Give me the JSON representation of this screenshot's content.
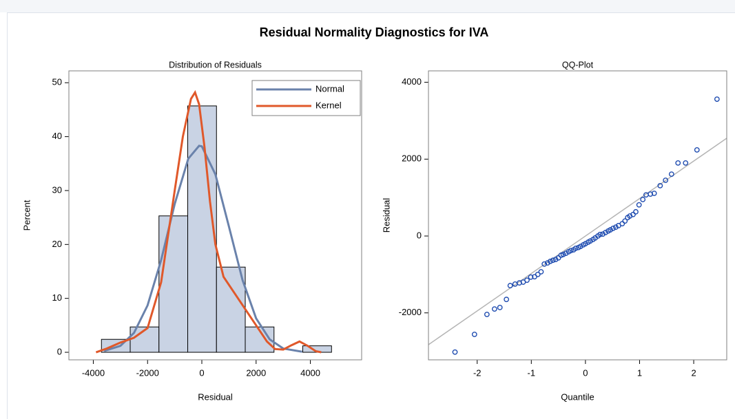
{
  "title": "Residual Normality Diagnostics for IVA",
  "chart_data": [
    {
      "type": "histogram",
      "title": "Distribution of Residuals",
      "xlabel": "Residual",
      "ylabel": "Percent",
      "bins": [
        -3700,
        -2640,
        -1580,
        -520,
        540,
        1600,
        2660,
        3720,
        4780
      ],
      "values": [
        2.4,
        4.7,
        25.3,
        45.7,
        15.8,
        4.7,
        0,
        1.2
      ],
      "color": "#c9d3e4",
      "curves": [
        {
          "name": "Normal",
          "color": "#6a82ab",
          "x": [
            -3600,
            -3000,
            -2500,
            -2000,
            -1500,
            -1000,
            -500,
            -100,
            0,
            500,
            1000,
            1500,
            2000,
            2500,
            3000,
            3700
          ],
          "values": [
            0.25,
            1.2,
            3.6,
            8.7,
            17.1,
            27.5,
            35.9,
            38.3,
            38.2,
            33.0,
            23.3,
            13.4,
            6.3,
            2.4,
            0.7,
            0.1
          ]
        },
        {
          "name": "Kernel",
          "color": "#e0582a",
          "x": [
            -3900,
            -3500,
            -3000,
            -2500,
            -2000,
            -1500,
            -1000,
            -700,
            -400,
            -250,
            -100,
            100,
            300,
            500,
            800,
            1200,
            1600,
            2000,
            2400,
            2700,
            3000,
            3300,
            3600,
            3900,
            4200,
            4400
          ],
          "values": [
            0,
            0.7,
            1.8,
            2.7,
            4.5,
            13,
            30,
            40,
            47,
            48.2,
            46,
            38,
            28,
            20,
            14,
            11,
            8,
            5,
            2,
            0.6,
            0.5,
            1.3,
            2.0,
            1.2,
            0.2,
            0
          ]
        }
      ],
      "legend": "upper right",
      "xlim": [
        -4900,
        5890
      ],
      "ylim": [
        -1.4,
        52.2
      ],
      "xticks": [
        -4000,
        -2000,
        0,
        2000,
        4000
      ],
      "yticks": [
        0,
        10,
        20,
        30,
        40,
        50
      ]
    },
    {
      "type": "scatter",
      "title": "QQ-Plot",
      "xlabel": "Quantile",
      "ylabel": "Residual",
      "x": [
        -2.41,
        -2.05,
        -1.82,
        -1.68,
        -1.58,
        -1.46,
        -1.39,
        -1.3,
        -1.22,
        -1.15,
        -1.08,
        -1.01,
        -0.94,
        -0.88,
        -0.82,
        -0.76,
        -0.7,
        -0.65,
        -0.6,
        -0.55,
        -0.5,
        -0.45,
        -0.41,
        -0.36,
        -0.31,
        -0.27,
        -0.22,
        -0.18,
        -0.13,
        -0.09,
        -0.04,
        0,
        0.05,
        0.09,
        0.14,
        0.18,
        0.23,
        0.27,
        0.32,
        0.37,
        0.42,
        0.46,
        0.51,
        0.56,
        0.61,
        0.68,
        0.73,
        0.78,
        0.82,
        0.88,
        0.93,
        0.99,
        1.06,
        1.12,
        1.2,
        1.27,
        1.38,
        1.48,
        1.59,
        1.71,
        1.85,
        2.06,
        2.43
      ],
      "values": [
        -3020,
        -2560,
        -2040,
        -1900,
        -1860,
        -1650,
        -1290,
        -1250,
        -1220,
        -1200,
        -1150,
        -1070,
        -1060,
        -1000,
        -930,
        -730,
        -700,
        -660,
        -630,
        -610,
        -570,
        -500,
        -480,
        -450,
        -410,
        -380,
        -360,
        -320,
        -300,
        -270,
        -230,
        -200,
        -160,
        -130,
        -90,
        -50,
        0,
        40,
        50,
        90,
        130,
        160,
        200,
        230,
        270,
        320,
        390,
        480,
        520,
        560,
        630,
        810,
        950,
        1070,
        1090,
        1110,
        1310,
        1450,
        1610,
        1900,
        1900,
        2240,
        3560
      ],
      "color": "#1f4cb0",
      "reference_line": {
        "slope": 975,
        "intercept": 0,
        "color": "#b4b4b4"
      },
      "xlim": [
        -2.9,
        2.61
      ],
      "ylim": [
        -3222,
        4297
      ],
      "xticks": [
        -2,
        -1,
        0,
        1,
        2
      ],
      "yticks": [
        -2000,
        0,
        2000,
        4000
      ]
    }
  ]
}
